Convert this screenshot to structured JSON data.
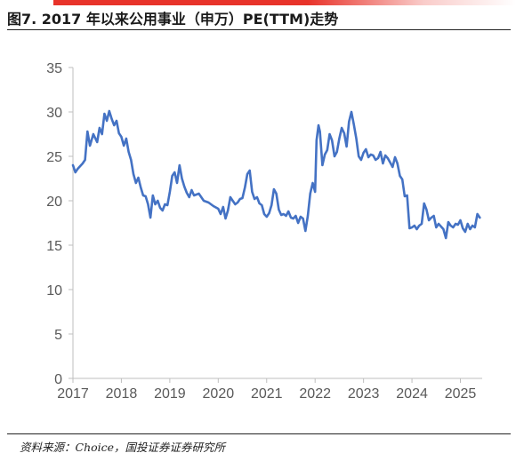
{
  "header": {
    "title": "图7. 2017 年以来公用事业（申万）PE(TTM)走势",
    "accent_color": "#e8332a"
  },
  "footer": {
    "source": "资料来源：Choice，国投证券证券研究所"
  },
  "chart_data": {
    "type": "line",
    "title": "",
    "xlabel": "",
    "ylabel": "",
    "ylim": [
      0,
      35
    ],
    "xlim": [
      2017.0,
      2025.45
    ],
    "yticks": [
      "0",
      "5",
      "10",
      "15",
      "20",
      "25",
      "30",
      "35"
    ],
    "xticks": [
      "2017",
      "2018",
      "2019",
      "2020",
      "2021",
      "2022",
      "2023",
      "2024",
      "2025"
    ],
    "grid": false,
    "legend": "none",
    "series": [
      {
        "color": "#4472c4",
        "x": [
          2017.0,
          2017.05,
          2017.1,
          2017.2,
          2017.25,
          2017.3,
          2017.35,
          2017.42,
          2017.5,
          2017.55,
          2017.6,
          2017.65,
          2017.7,
          2017.75,
          2017.8,
          2017.85,
          2017.9,
          2017.95,
          2018.0,
          2018.05,
          2018.1,
          2018.15,
          2018.2,
          2018.25,
          2018.3,
          2018.35,
          2018.4,
          2018.45,
          2018.5,
          2018.55,
          2018.6,
          2018.65,
          2018.7,
          2018.75,
          2018.8,
          2018.85,
          2018.9,
          2018.95,
          2019.0,
          2019.05,
          2019.1,
          2019.15,
          2019.2,
          2019.25,
          2019.3,
          2019.35,
          2019.4,
          2019.45,
          2019.5,
          2019.6,
          2019.7,
          2019.8,
          2019.9,
          2020.0,
          2020.05,
          2020.1,
          2020.15,
          2020.2,
          2020.25,
          2020.3,
          2020.35,
          2020.4,
          2020.45,
          2020.5,
          2020.55,
          2020.6,
          2020.65,
          2020.7,
          2020.75,
          2020.8,
          2020.85,
          2020.9,
          2020.95,
          2021.0,
          2021.05,
          2021.1,
          2021.15,
          2021.2,
          2021.25,
          2021.3,
          2021.35,
          2021.4,
          2021.45,
          2021.5,
          2021.55,
          2021.6,
          2021.65,
          2021.7,
          2021.75,
          2021.8,
          2021.85,
          2021.9,
          2021.95,
          2022.0,
          2022.03,
          2022.07,
          2022.1,
          2022.15,
          2022.2,
          2022.25,
          2022.3,
          2022.35,
          2022.4,
          2022.45,
          2022.5,
          2022.55,
          2022.6,
          2022.65,
          2022.7,
          2022.75,
          2022.8,
          2022.85,
          2022.9,
          2022.95,
          2023.0,
          2023.05,
          2023.1,
          2023.15,
          2023.2,
          2023.25,
          2023.3,
          2023.35,
          2023.4,
          2023.45,
          2023.5,
          2023.55,
          2023.6,
          2023.65,
          2023.7,
          2023.75,
          2023.8,
          2023.85,
          2023.9,
          2023.95,
          2024.0,
          2024.05,
          2024.1,
          2024.15,
          2024.2,
          2024.25,
          2024.3,
          2024.35,
          2024.4,
          2024.45,
          2024.5,
          2024.55,
          2024.6,
          2024.65,
          2024.7,
          2024.75,
          2024.8,
          2024.85,
          2024.9,
          2024.95,
          2025.0,
          2025.05,
          2025.1,
          2025.15,
          2025.2,
          2025.25,
          2025.3,
          2025.35,
          2025.4
        ],
        "values": [
          24.0,
          23.2,
          23.6,
          24.2,
          24.6,
          27.8,
          26.2,
          27.5,
          26.6,
          28.2,
          27.5,
          29.8,
          29.0,
          30.1,
          29.2,
          28.5,
          29.0,
          27.6,
          27.2,
          26.2,
          27.0,
          25.5,
          24.6,
          23.0,
          22.0,
          22.6,
          21.5,
          20.6,
          20.5,
          19.6,
          18.1,
          20.6,
          19.6,
          20.0,
          19.2,
          18.9,
          19.6,
          19.5,
          21.0,
          22.8,
          23.2,
          22.0,
          24.0,
          22.5,
          21.6,
          20.9,
          20.4,
          21.2,
          20.6,
          20.8,
          20.0,
          19.8,
          19.4,
          19.1,
          18.5,
          19.3,
          18.0,
          18.9,
          20.4,
          20.0,
          19.6,
          19.8,
          20.2,
          20.3,
          21.5,
          23.0,
          23.4,
          21.0,
          20.2,
          20.4,
          19.7,
          19.5,
          18.5,
          18.2,
          18.6,
          19.5,
          21.3,
          20.8,
          19.0,
          18.4,
          18.5,
          18.3,
          18.8,
          18.1,
          18.0,
          18.3,
          17.5,
          18.2,
          18.0,
          16.6,
          18.3,
          20.8,
          22.0,
          21.0,
          26.8,
          28.5,
          27.8,
          24.0,
          25.2,
          25.7,
          27.5,
          26.8,
          25.0,
          25.5,
          27.0,
          28.2,
          27.6,
          26.1,
          28.9,
          30.0,
          28.6,
          27.0,
          25.0,
          24.6,
          25.4,
          25.8,
          24.9,
          25.2,
          25.1,
          24.6,
          24.8,
          25.5,
          24.2,
          25.1,
          24.8,
          24.3,
          23.8,
          24.9,
          24.2,
          22.8,
          22.4,
          20.5,
          20.6,
          16.9,
          17.0,
          17.2,
          16.8,
          17.2,
          17.4,
          19.7,
          19.0,
          17.8,
          18.1,
          18.3,
          17.0,
          17.4,
          17.1,
          16.8,
          15.8,
          17.6,
          17.2,
          17.0,
          17.4,
          17.3,
          17.8,
          16.9,
          16.5,
          17.4,
          16.8,
          17.2,
          17.0,
          18.5,
          18.1
        ]
      }
    ]
  }
}
